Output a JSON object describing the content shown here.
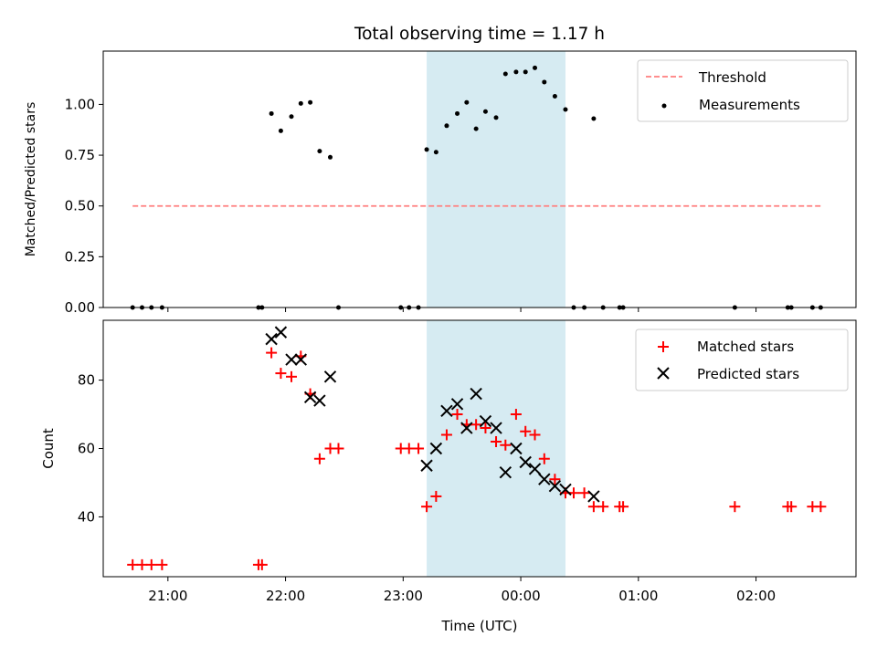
{
  "chart_data": [
    {
      "type": "scatter",
      "title": "Total observing time = 1.17 h",
      "xlabel": "",
      "ylabel": "Matched/Predicted stars",
      "x_unit": "time (UTC), decimal hours from 00:00 on first night",
      "xlim": [
        20.45,
        26.85
      ],
      "ylim": [
        0,
        1.2625
      ],
      "yticks": [
        0.0,
        0.25,
        0.5,
        0.75,
        1.0
      ],
      "ytick_labels": [
        "0.00",
        "0.25",
        "0.50",
        "0.75",
        "1.00"
      ],
      "highlight_span": [
        23.2,
        24.38
      ],
      "legend_position": "upper right",
      "threshold": {
        "name": "Threshold",
        "color": "#ff7f7f",
        "style": "dashed",
        "y": 0.5,
        "x": [
          20.7,
          26.55
        ]
      },
      "series": [
        {
          "name": "Measurements",
          "marker": "dot",
          "color": "#000000",
          "points": [
            [
              20.7,
              0
            ],
            [
              20.78,
              0
            ],
            [
              20.86,
              0
            ],
            [
              20.95,
              0
            ],
            [
              21.77,
              0
            ],
            [
              21.8,
              0
            ],
            [
              21.88,
              0.955
            ],
            [
              21.96,
              0.87
            ],
            [
              22.05,
              0.94
            ],
            [
              22.13,
              1.005
            ],
            [
              22.21,
              1.01
            ],
            [
              22.29,
              0.77
            ],
            [
              22.38,
              0.74
            ],
            [
              22.45,
              0
            ],
            [
              22.98,
              0
            ],
            [
              23.05,
              0
            ],
            [
              23.13,
              0
            ],
            [
              23.2,
              0.778
            ],
            [
              23.28,
              0.765
            ],
            [
              23.37,
              0.895
            ],
            [
              23.46,
              0.955
            ],
            [
              23.54,
              1.01
            ],
            [
              23.62,
              0.88
            ],
            [
              23.7,
              0.965
            ],
            [
              23.79,
              0.935
            ],
            [
              23.87,
              1.15
            ],
            [
              23.96,
              1.16
            ],
            [
              24.04,
              1.16
            ],
            [
              24.12,
              1.18
            ],
            [
              24.2,
              1.11
            ],
            [
              24.29,
              1.04
            ],
            [
              24.38,
              0.975
            ],
            [
              24.45,
              0
            ],
            [
              24.54,
              0
            ],
            [
              24.62,
              0.93
            ],
            [
              24.7,
              0
            ],
            [
              24.84,
              0
            ],
            [
              24.87,
              0
            ],
            [
              25.82,
              0
            ],
            [
              26.27,
              0
            ],
            [
              26.3,
              0
            ],
            [
              26.48,
              0
            ],
            [
              26.55,
              0
            ]
          ]
        }
      ]
    },
    {
      "type": "scatter",
      "title": "",
      "xlabel": "Time (UTC)",
      "ylabel": "Count",
      "x_unit": "time (UTC), decimal hours from 00:00 on first night",
      "xlim": [
        20.45,
        26.85
      ],
      "ylim": [
        22.5,
        97.5
      ],
      "yticks": [
        40,
        60,
        80
      ],
      "ytick_labels": [
        "40",
        "60",
        "80"
      ],
      "xticks": [
        21,
        22,
        23,
        24,
        25,
        26
      ],
      "xtick_labels": [
        "21:00",
        "22:00",
        "23:00",
        "00:00",
        "01:00",
        "02:00"
      ],
      "highlight_span": [
        23.2,
        24.38
      ],
      "legend_position": "upper right",
      "series": [
        {
          "name": "Matched stars",
          "marker": "plus",
          "color": "#ff0000",
          "points": [
            [
              20.7,
              26
            ],
            [
              20.78,
              26
            ],
            [
              20.86,
              26
            ],
            [
              20.95,
              26
            ],
            [
              21.77,
              26
            ],
            [
              21.8,
              26
            ],
            [
              21.88,
              88
            ],
            [
              21.96,
              82
            ],
            [
              22.05,
              81
            ],
            [
              22.13,
              87
            ],
            [
              22.21,
              76
            ],
            [
              22.29,
              57
            ],
            [
              22.38,
              60
            ],
            [
              22.45,
              60
            ],
            [
              22.98,
              60
            ],
            [
              23.05,
              60
            ],
            [
              23.13,
              60
            ],
            [
              23.2,
              43
            ],
            [
              23.28,
              46
            ],
            [
              23.37,
              64
            ],
            [
              23.46,
              70
            ],
            [
              23.54,
              67
            ],
            [
              23.62,
              67
            ],
            [
              23.7,
              66
            ],
            [
              23.79,
              62
            ],
            [
              23.87,
              61
            ],
            [
              23.96,
              70
            ],
            [
              24.04,
              65
            ],
            [
              24.12,
              64
            ],
            [
              24.2,
              57
            ],
            [
              24.29,
              51
            ],
            [
              24.38,
              47
            ],
            [
              24.45,
              47
            ],
            [
              24.54,
              47
            ],
            [
              24.62,
              43
            ],
            [
              24.7,
              43
            ],
            [
              24.84,
              43
            ],
            [
              24.87,
              43
            ],
            [
              25.82,
              43
            ],
            [
              26.27,
              43
            ],
            [
              26.3,
              43
            ],
            [
              26.48,
              43
            ],
            [
              26.55,
              43
            ]
          ]
        },
        {
          "name": "Predicted stars",
          "marker": "x",
          "color": "#000000",
          "points": [
            [
              21.88,
              92
            ],
            [
              21.96,
              94
            ],
            [
              22.05,
              86
            ],
            [
              22.13,
              86
            ],
            [
              22.21,
              75
            ],
            [
              22.29,
              74
            ],
            [
              22.38,
              81
            ],
            [
              23.2,
              55
            ],
            [
              23.28,
              60
            ],
            [
              23.37,
              71
            ],
            [
              23.46,
              73
            ],
            [
              23.54,
              66
            ],
            [
              23.62,
              76
            ],
            [
              23.7,
              68
            ],
            [
              23.79,
              66
            ],
            [
              23.87,
              53
            ],
            [
              23.96,
              60
            ],
            [
              24.04,
              56
            ],
            [
              24.12,
              54
            ],
            [
              24.2,
              51
            ],
            [
              24.29,
              49
            ],
            [
              24.38,
              48
            ],
            [
              24.62,
              46
            ]
          ]
        }
      ]
    }
  ],
  "legend_top": {
    "items": [
      "Threshold",
      "Measurements"
    ]
  },
  "legend_bottom": {
    "items": [
      "Matched stars",
      "Predicted stars"
    ]
  },
  "colors": {
    "span": "#add8e6",
    "threshold": "#ff7f7f",
    "matched": "#ff0000",
    "predicted": "#000000"
  }
}
